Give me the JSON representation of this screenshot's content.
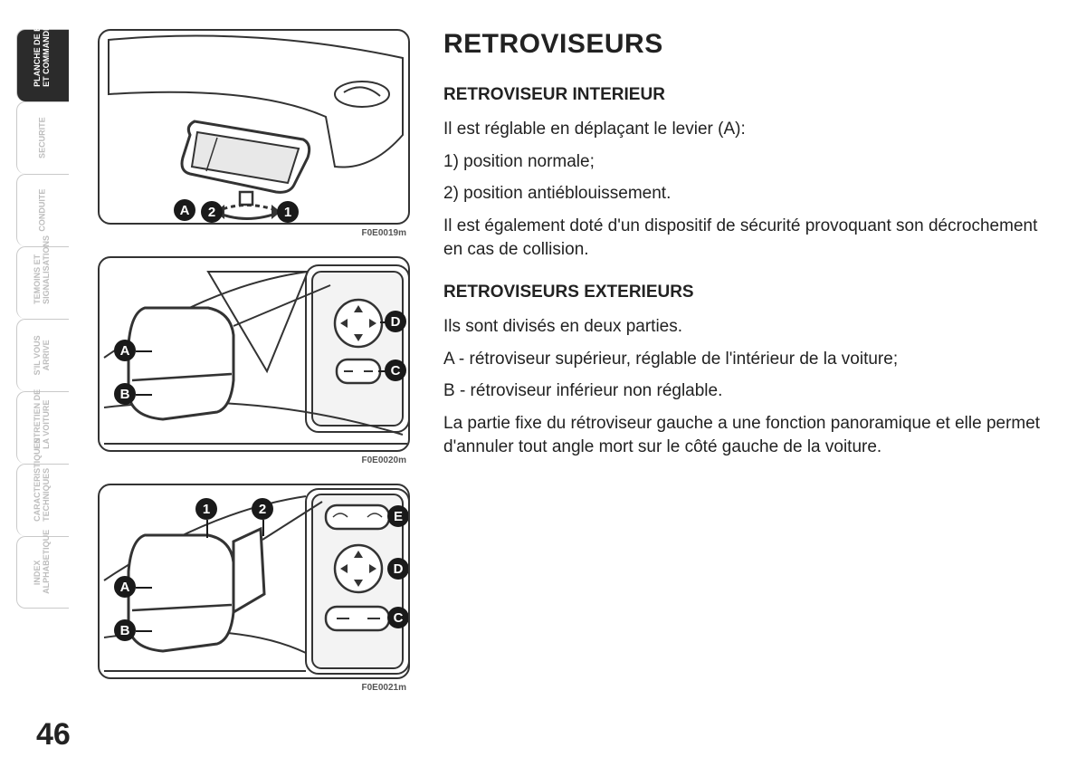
{
  "page_number": "46",
  "tabs": [
    {
      "label": "PLANCHE DE BORD\nET COMMANDES",
      "active": true
    },
    {
      "label": "SECURITE",
      "active": false
    },
    {
      "label": "CONDUITE",
      "active": false
    },
    {
      "label": "TEMOINS ET\nSIGNALISATIONS",
      "active": false
    },
    {
      "label": "S'IL VOUS\nARRIVE",
      "active": false
    },
    {
      "label": "ENTRETIEN DE\nLA VOITURE",
      "active": false
    },
    {
      "label": "CARACTERISTIQUES\nTECHNIQUES",
      "active": false
    },
    {
      "label": "INDEX\nALPHABETIQUE",
      "active": false
    }
  ],
  "figures": {
    "fig1": {
      "caption": "F0E0019m",
      "callouts": {
        "A": "A",
        "n1": "1",
        "n2": "2"
      }
    },
    "fig2": {
      "caption": "F0E0020m",
      "callouts": {
        "A": "A",
        "B": "B",
        "C": "C",
        "D": "D"
      }
    },
    "fig3": {
      "caption": "F0E0021m",
      "callouts": {
        "A": "A",
        "B": "B",
        "C": "C",
        "D": "D",
        "E": "E",
        "n1": "1",
        "n2": "2"
      }
    }
  },
  "content": {
    "title": "RETROVISEURS",
    "section1": {
      "heading": "RETROVISEUR INTERIEUR",
      "p1": "Il est réglable en déplaçant le levier (A):",
      "p2": "1) position normale;",
      "p3": "2) position antiéblouissement.",
      "p4": "Il est également doté d'un dispositif de sécurité provoquant son décrochement en cas de collision."
    },
    "section2": {
      "heading": "RETROVISEURS EXTERIEURS",
      "p1": "Ils sont divisés en deux parties.",
      "p2": "A - rétroviseur supérieur, réglable de l'intérieur de la voiture;",
      "p3": "B - rétroviseur inférieur non réglable.",
      "p4": "La partie fixe du rétroviseur gauche a une fonction panoramique et elle permet d'annuler tout angle mort sur le côté gauche de la voiture."
    }
  }
}
